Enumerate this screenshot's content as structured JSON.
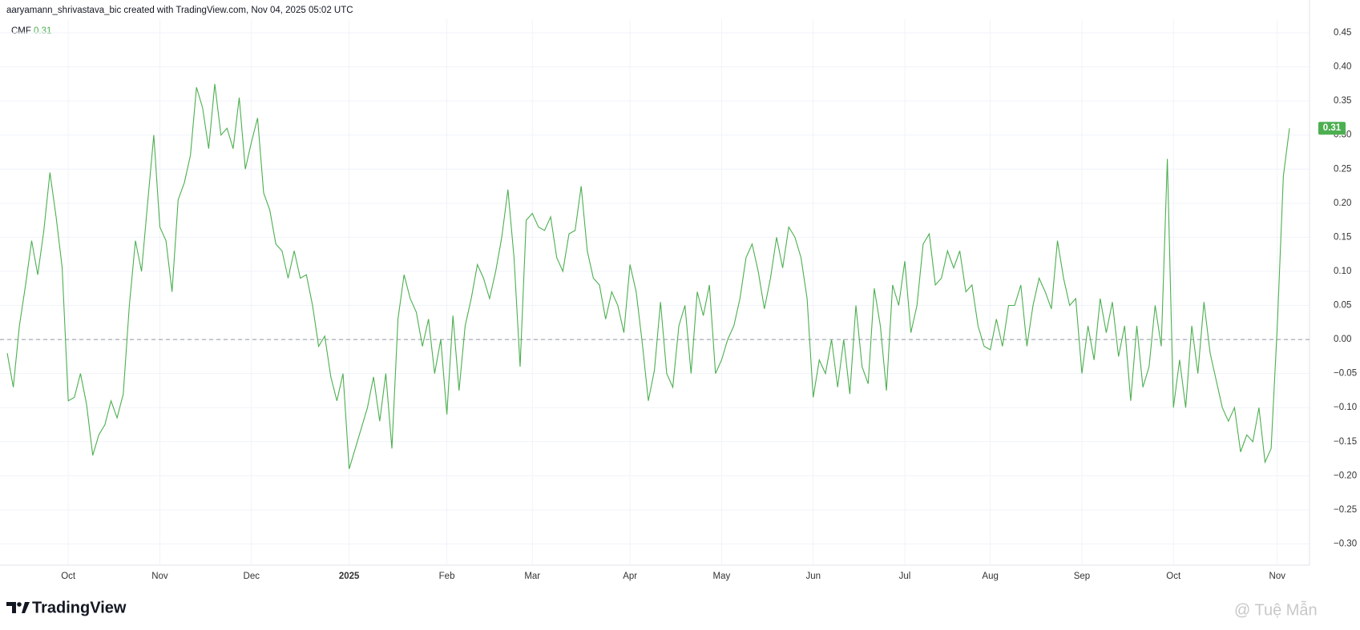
{
  "header": "aaryamann_shrivastava_bic created with TradingView.com, Nov 04, 2025 05:02 UTC",
  "logo": "TradingView",
  "watermark": "@ Tuệ Mẫn",
  "chart_data": {
    "type": "line",
    "series": [
      {
        "name": "CMF",
        "color": "#4caf50",
        "values": [
          -0.02,
          -0.07,
          0.02,
          0.08,
          0.145,
          0.095,
          0.16,
          0.245,
          0.18,
          0.105,
          -0.09,
          -0.085,
          -0.05,
          -0.095,
          -0.17,
          -0.14,
          -0.125,
          -0.09,
          -0.115,
          -0.08,
          0.05,
          0.145,
          0.1,
          0.2,
          0.3,
          0.165,
          0.145,
          0.07,
          0.205,
          0.23,
          0.27,
          0.37,
          0.34,
          0.28,
          0.375,
          0.3,
          0.31,
          0.28,
          0.355,
          0.25,
          0.29,
          0.325,
          0.215,
          0.19,
          0.14,
          0.13,
          0.09,
          0.13,
          0.09,
          0.095,
          0.05,
          -0.01,
          0.005,
          -0.055,
          -0.09,
          -0.05,
          -0.19,
          -0.16,
          -0.13,
          -0.1,
          -0.055,
          -0.12,
          -0.05,
          -0.16,
          0.03,
          0.095,
          0.06,
          0.04,
          -0.01,
          0.03,
          -0.05,
          0.0,
          -0.11,
          0.035,
          -0.075,
          0.02,
          0.06,
          0.11,
          0.09,
          0.06,
          0.1,
          0.15,
          0.22,
          0.12,
          -0.04,
          0.175,
          0.185,
          0.165,
          0.16,
          0.18,
          0.12,
          0.1,
          0.155,
          0.16,
          0.225,
          0.13,
          0.09,
          0.08,
          0.03,
          0.07,
          0.05,
          0.01,
          0.11,
          0.07,
          -0.005,
          -0.09,
          -0.045,
          0.055,
          -0.05,
          -0.07,
          0.02,
          0.05,
          -0.05,
          0.07,
          0.035,
          0.08,
          -0.05,
          -0.03,
          0.0,
          0.02,
          0.06,
          0.12,
          0.14,
          0.1,
          0.045,
          0.09,
          0.15,
          0.105,
          0.165,
          0.15,
          0.12,
          0.06,
          -0.085,
          -0.03,
          -0.05,
          0.0,
          -0.07,
          0.0,
          -0.08,
          0.05,
          -0.04,
          -0.065,
          0.075,
          0.02,
          -0.075,
          0.08,
          0.05,
          0.115,
          0.01,
          0.05,
          0.14,
          0.155,
          0.08,
          0.09,
          0.13,
          0.105,
          0.13,
          0.07,
          0.08,
          0.02,
          -0.01,
          -0.015,
          0.03,
          -0.01,
          0.05,
          0.05,
          0.08,
          -0.01,
          0.05,
          0.09,
          0.07,
          0.045,
          0.145,
          0.09,
          0.05,
          0.06,
          -0.05,
          0.02,
          -0.03,
          0.06,
          0.01,
          0.055,
          -0.025,
          0.02,
          -0.09,
          0.02,
          -0.07,
          -0.04,
          0.05,
          -0.01,
          0.265,
          -0.1,
          -0.03,
          -0.1,
          0.02,
          -0.05,
          0.055,
          -0.02,
          -0.06,
          -0.1,
          -0.12,
          -0.1,
          -0.165,
          -0.14,
          -0.15,
          -0.1,
          -0.18,
          -0.16,
          0.02,
          0.24,
          0.31
        ]
      }
    ],
    "ylim": [
      -0.33,
      0.47
    ],
    "yticks": [
      {
        "value": 0.45,
        "label": "0.45"
      },
      {
        "value": 0.4,
        "label": "0.40"
      },
      {
        "value": 0.35,
        "label": "0.35"
      },
      {
        "value": 0.3,
        "label": "0.30"
      },
      {
        "value": 0.25,
        "label": "0.25"
      },
      {
        "value": 0.2,
        "label": "0.20"
      },
      {
        "value": 0.15,
        "label": "0.15"
      },
      {
        "value": 0.1,
        "label": "0.10"
      },
      {
        "value": 0.05,
        "label": "0.05"
      },
      {
        "value": 0,
        "label": "0.00"
      },
      {
        "value": -0.05,
        "label": "−0.05"
      },
      {
        "value": -0.1,
        "label": "−0.10"
      },
      {
        "value": -0.15,
        "label": "−0.15"
      },
      {
        "value": -0.2,
        "label": "−0.20"
      },
      {
        "value": -0.25,
        "label": "−0.25"
      },
      {
        "value": -0.3,
        "label": "−0.30"
      }
    ],
    "xticks": [
      {
        "value": 10,
        "label": "Oct"
      },
      {
        "value": 25,
        "label": "Nov"
      },
      {
        "value": 40,
        "label": "Dec"
      },
      {
        "value": 56,
        "label": "2025",
        "bold": true
      },
      {
        "value": 72,
        "label": "Feb"
      },
      {
        "value": 86,
        "label": "Mar"
      },
      {
        "value": 102,
        "label": "Apr"
      },
      {
        "value": 117,
        "label": "May"
      },
      {
        "value": 132,
        "label": "Jun"
      },
      {
        "value": 147,
        "label": "Jul"
      },
      {
        "value": 161,
        "label": "Aug"
      },
      {
        "value": 176,
        "label": "Sep"
      },
      {
        "value": 191,
        "label": "Oct"
      },
      {
        "value": 208,
        "label": "Nov"
      }
    ],
    "zero_line": 0,
    "grid": true
  }
}
